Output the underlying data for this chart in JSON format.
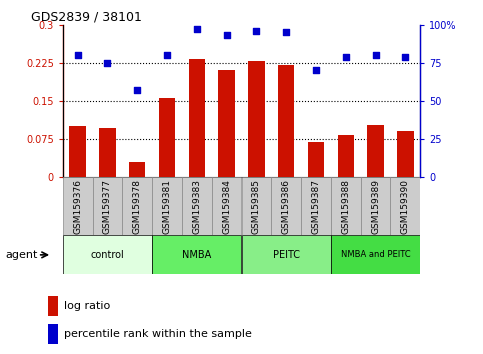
{
  "title": "GDS2839 / 38101",
  "categories": [
    "GSM159376",
    "GSM159377",
    "GSM159378",
    "GSM159381",
    "GSM159383",
    "GSM159384",
    "GSM159385",
    "GSM159386",
    "GSM159387",
    "GSM159388",
    "GSM159389",
    "GSM159390"
  ],
  "log_ratio": [
    0.1,
    0.097,
    0.03,
    0.155,
    0.232,
    0.21,
    0.228,
    0.22,
    0.068,
    0.083,
    0.103,
    0.09
  ],
  "percentile_rank": [
    80,
    75,
    57,
    80,
    97,
    93,
    96,
    95,
    70,
    79,
    80,
    79
  ],
  "bar_color": "#cc1100",
  "dot_color": "#0000cc",
  "ylim_left": [
    0,
    0.3
  ],
  "ylim_right": [
    0,
    100
  ],
  "yticks_left": [
    0,
    0.075,
    0.15,
    0.225,
    0.3
  ],
  "yticks_right": [
    0,
    25,
    50,
    75,
    100
  ],
  "ytick_labels_left": [
    "0",
    "0.075",
    "0.15",
    "0.225",
    "0.3"
  ],
  "ytick_labels_right": [
    "0",
    "25",
    "50",
    "75",
    "100%"
  ],
  "groups": [
    {
      "label": "control",
      "start": 0,
      "end": 3,
      "color": "#e0ffe0"
    },
    {
      "label": "NMBA",
      "start": 3,
      "end": 6,
      "color": "#66ee66"
    },
    {
      "label": "PEITC",
      "start": 6,
      "end": 9,
      "color": "#88ee88"
    },
    {
      "label": "NMBA and PEITC",
      "start": 9,
      "end": 12,
      "color": "#44dd44"
    }
  ],
  "legend_bar_label": "log ratio",
  "legend_dot_label": "percentile rank within the sample",
  "agent_label": "agent",
  "background_color": "#ffffff",
  "tick_bg_color": "#cccccc",
  "tick_border_color": "#888888"
}
